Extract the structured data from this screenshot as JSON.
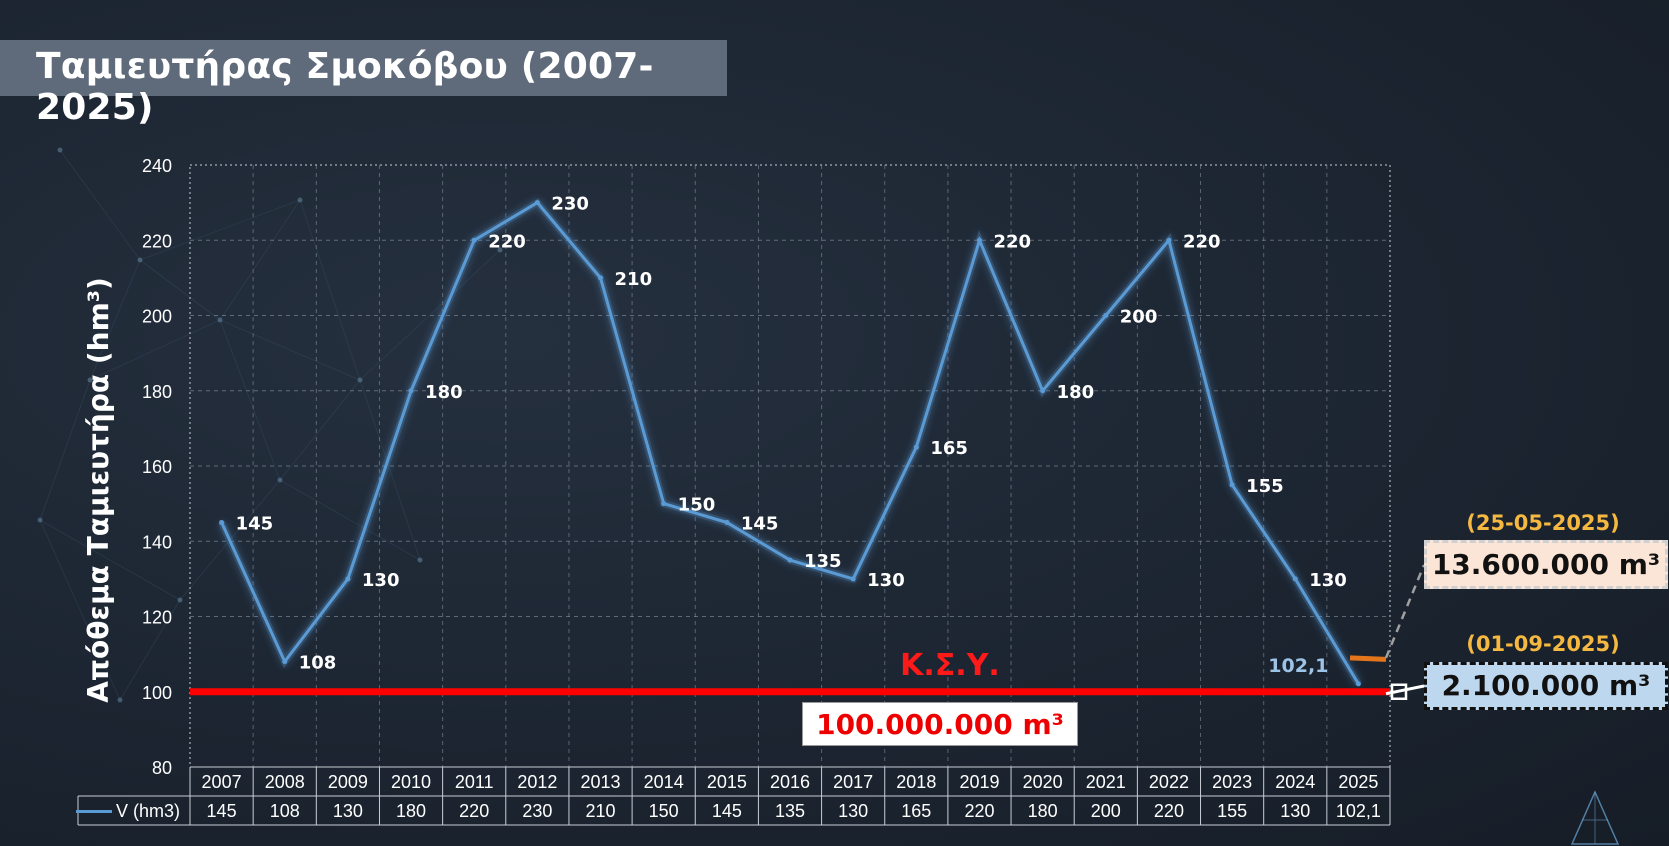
{
  "title": "Ταμιευτήρας Σμοκόβου (2007-2025)",
  "chart_data": {
    "type": "line",
    "ylabel": "Απόθεμα Ταμιευτήρα (hm³)",
    "ylim": [
      80,
      240
    ],
    "yticks": [
      "80",
      "100",
      "120",
      "140",
      "160",
      "180",
      "200",
      "220",
      "240"
    ],
    "grid": true,
    "categories": [
      "2007",
      "2008",
      "2009",
      "2010",
      "2011",
      "2012",
      "2013",
      "2014",
      "2015",
      "2016",
      "2017",
      "2018",
      "2019",
      "2020",
      "2021",
      "2022",
      "2023",
      "2024",
      "2025"
    ],
    "series": [
      {
        "name": "V (hm3)",
        "color": "#5b9bd5",
        "values": [
          145,
          108,
          130,
          180,
          220,
          230,
          210,
          150,
          145,
          135,
          130,
          165,
          220,
          180,
          200,
          220,
          155,
          130,
          102.1
        ],
        "labels": [
          "145",
          "108",
          "130",
          "180",
          "220",
          "230",
          "210",
          "150",
          "145",
          "135",
          "130",
          "165",
          "220",
          "180",
          "200",
          "220",
          "155",
          "130",
          "102,1"
        ]
      }
    ],
    "threshold": {
      "value": 100,
      "label": "Κ.Σ.Υ.",
      "box_label": "100.000.000 m³",
      "color": "#ff0000"
    }
  },
  "callouts": {
    "top": {
      "date": "(25-05-2025)",
      "text": "13.600.000 m³",
      "marker_value": 109,
      "marker_color": "#e3761c"
    },
    "bottom": {
      "date": "(01-09-2025)",
      "text": "2.100.000 m³",
      "marker_value": 100,
      "marker_color": "#ffffff"
    }
  }
}
